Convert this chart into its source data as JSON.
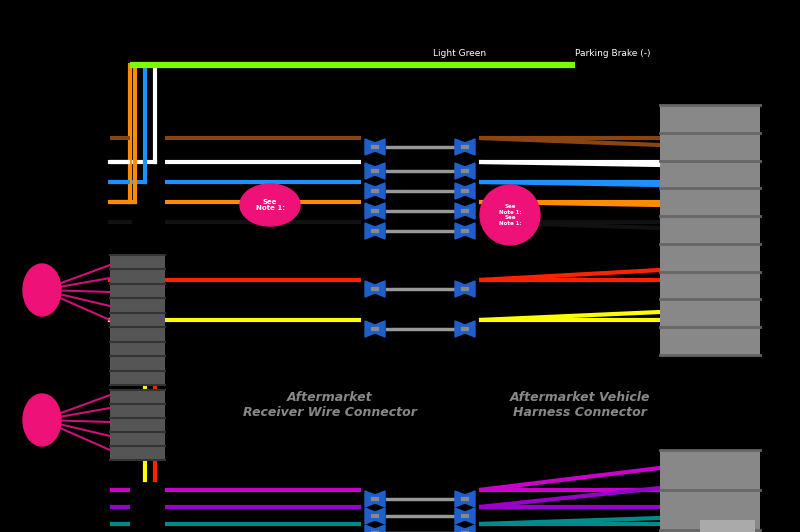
{
  "bg": "#000000",
  "label_lg": "Light Green",
  "label_pb": "Parking Brake (-)",
  "label_ar": "Aftermarket\nReceiver Wire Connector",
  "label_av": "Aftermarket Vehicle\nHarness Connector",
  "upper_wires": [
    [
      "#8B4513",
      0.26
    ],
    [
      "#FFFFFF",
      0.278
    ],
    [
      "#1E90FF",
      0.296
    ],
    [
      "#FF8C00",
      0.314
    ],
    [
      "#111111",
      0.332
    ],
    [
      "#FF2200",
      0.39
    ],
    [
      "#FFFF00",
      0.43
    ]
  ],
  "lower_wires": [
    [
      "#CC00CC",
      0.57
    ],
    [
      "#9900CC",
      0.592
    ],
    [
      "#008B8B",
      0.62
    ],
    [
      "#009900",
      0.648
    ],
    [
      "#888888",
      0.676
    ],
    [
      "#666666",
      0.7
    ],
    [
      "#444444",
      0.722
    ],
    [
      "#CCCCCC",
      0.748
    ],
    [
      "#FFFFFF",
      0.77
    ]
  ],
  "right_upper_fan": [
    [
      "#8B4513",
      0.165
    ],
    [
      "#FFFFFF",
      0.185
    ],
    [
      "#1E90FF",
      0.205
    ],
    [
      "#FF8C00",
      0.225
    ],
    [
      "#111111",
      0.248
    ],
    [
      "#FF2200",
      0.29
    ],
    [
      "#FFFF00",
      0.33
    ]
  ],
  "right_lower_fan": [
    [
      "#CC00CC",
      0.56
    ],
    [
      "#9900CC",
      0.585
    ],
    [
      "#008B8B",
      0.618
    ],
    [
      "#009900",
      0.648
    ],
    [
      "#888888",
      0.678
    ],
    [
      "#666666",
      0.702
    ],
    [
      "#444444",
      0.722
    ],
    [
      "#CCCCCC",
      0.748
    ],
    [
      "#FFFFFF",
      0.768
    ]
  ]
}
